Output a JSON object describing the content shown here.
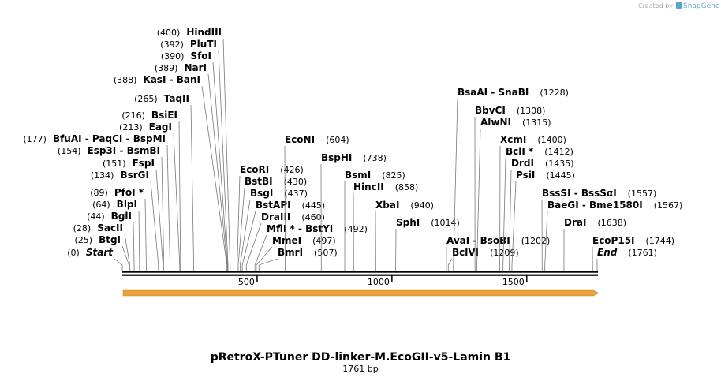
{
  "watermark": {
    "prefix": "Created by",
    "brand": "SnapGene"
  },
  "title": "pRetroX-PTuner DD-linker-M.EcoGII-v5-Lamin B1",
  "sequence_length": {
    "value": 1761,
    "label": "1761 bp"
  },
  "ticks": [
    500,
    1000,
    1500
  ],
  "sites": [
    {
      "name": "Start",
      "position": {
        "value": 0,
        "label": "(0)"
      }
    },
    {
      "name": "BtgI",
      "position": {
        "value": 25,
        "label": "(25)"
      }
    },
    {
      "name": "SacII",
      "position": {
        "value": 28,
        "label": "(28)"
      }
    },
    {
      "name": "BglI",
      "position": {
        "value": 44,
        "label": "(44)"
      }
    },
    {
      "name": "BlpI",
      "position": {
        "value": 64,
        "label": "(64)"
      }
    },
    {
      "name": "PfoI *",
      "position": {
        "value": 89,
        "label": "(89)"
      }
    },
    {
      "name": "BsrGI",
      "position": {
        "value": 134,
        "label": "(134)"
      }
    },
    {
      "name": "FspI",
      "position": {
        "value": 151,
        "label": "(151)"
      }
    },
    {
      "name": "Esp3I  - BsmBI",
      "position": {
        "value": 154,
        "label": "(154)"
      }
    },
    {
      "name": "BfuAI  - PaqCI  - BspMI",
      "position": {
        "value": 177,
        "label": "(177)"
      }
    },
    {
      "name": "EagI",
      "position": {
        "value": 213,
        "label": "(213)"
      }
    },
    {
      "name": "BsiEI",
      "position": {
        "value": 216,
        "label": "(216)"
      }
    },
    {
      "name": "TaqII",
      "position": {
        "value": 265,
        "label": "(265)"
      }
    },
    {
      "name": "KasI  - BanI",
      "position": {
        "value": 388,
        "label": "(388)"
      }
    },
    {
      "name": "NarI",
      "position": {
        "value": 389,
        "label": "(389)"
      }
    },
    {
      "name": "SfoI",
      "position": {
        "value": 390,
        "label": "(390)"
      }
    },
    {
      "name": "PluTI",
      "position": {
        "value": 392,
        "label": "(392)"
      }
    },
    {
      "name": "HindIII",
      "position": {
        "value": 400,
        "label": "(400)"
      }
    },
    {
      "name": "EcoRI",
      "position": {
        "value": 426,
        "label": "(426)"
      }
    },
    {
      "name": "BstBI",
      "position": {
        "value": 430,
        "label": "(430)"
      }
    },
    {
      "name": "BsgI",
      "position": {
        "value": 437,
        "label": "(437)"
      }
    },
    {
      "name": "BstAPI",
      "position": {
        "value": 445,
        "label": "(445)"
      }
    },
    {
      "name": "DraIII",
      "position": {
        "value": 460,
        "label": "(460)"
      }
    },
    {
      "name": "MflI *  - BstYI",
      "position": {
        "value": 492,
        "label": "(492)"
      }
    },
    {
      "name": "MmeI",
      "position": {
        "value": 497,
        "label": "(497)"
      }
    },
    {
      "name": "BmrI",
      "position": {
        "value": 507,
        "label": "(507)"
      }
    },
    {
      "name": "EcoNI",
      "position": {
        "value": 604,
        "label": "(604)"
      }
    },
    {
      "name": "BspHI",
      "position": {
        "value": 738,
        "label": "(738)"
      }
    },
    {
      "name": "BsmI",
      "position": {
        "value": 825,
        "label": "(825)"
      }
    },
    {
      "name": "HincII",
      "position": {
        "value": 858,
        "label": "(858)"
      }
    },
    {
      "name": "XbaI",
      "position": {
        "value": 940,
        "label": "(940)"
      }
    },
    {
      "name": "SphI",
      "position": {
        "value": 1014,
        "label": "(1014)"
      }
    },
    {
      "name": "BsaAI  - SnaBI",
      "position": {
        "value": 1228,
        "label": "(1228)"
      }
    },
    {
      "name": "AvaI  - BsoBI",
      "position": {
        "value": 1202,
        "label": "(1202)"
      }
    },
    {
      "name": "BclVI",
      "position": {
        "value": 1209,
        "label": "(1209)"
      }
    },
    {
      "name": "BbvCI",
      "position": {
        "value": 1308,
        "label": "(1308)"
      }
    },
    {
      "name": "AlwNI",
      "position": {
        "value": 1315,
        "label": "(1315)"
      }
    },
    {
      "name": "XcmI",
      "position": {
        "value": 1400,
        "label": "(1400)"
      }
    },
    {
      "name": "BclI *",
      "position": {
        "value": 1412,
        "label": "(1412)"
      }
    },
    {
      "name": "DrdI",
      "position": {
        "value": 1435,
        "label": "(1435)"
      }
    },
    {
      "name": "PsiI",
      "position": {
        "value": 1445,
        "label": "(1445)"
      }
    },
    {
      "name": "BssSI  - BssSαI",
      "position": {
        "value": 1557,
        "label": "(1557)"
      }
    },
    {
      "name": "BaeGI  - Bme1580I",
      "position": {
        "value": 1567,
        "label": "(1567)"
      }
    },
    {
      "name": "DraI",
      "position": {
        "value": 1638,
        "label": "(1638)"
      }
    },
    {
      "name": "EcoP15I",
      "position": {
        "value": 1744,
        "label": "(1744)"
      }
    },
    {
      "name": "End",
      "position": {
        "value": 1761,
        "label": "(1761)"
      }
    }
  ]
}
